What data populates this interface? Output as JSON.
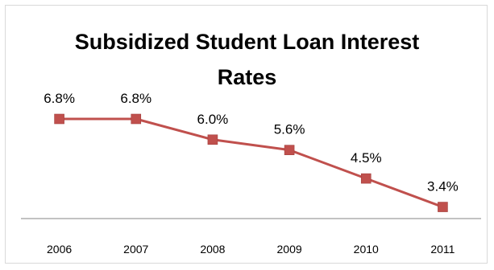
{
  "chart_data": {
    "type": "line",
    "title": "Subsidized Student Loan Interest Rates",
    "title_lines": [
      "Subsidized Student Loan Interest",
      "Rates"
    ],
    "xlabel": "",
    "ylabel": "",
    "categories": [
      "2006",
      "2007",
      "2008",
      "2009",
      "2010",
      "2011"
    ],
    "series": [
      {
        "values": [
          6.8,
          6.8,
          6.0,
          5.6,
          4.5,
          3.4
        ],
        "data_labels": [
          "6.8%",
          "6.8%",
          "6.0%",
          "5.6%",
          "4.5%",
          "3.4%"
        ],
        "color": "#c0504d"
      }
    ],
    "ylim": [
      3.2,
      6.8
    ],
    "grid": false,
    "legend": "none",
    "axis_color": "#868686"
  }
}
